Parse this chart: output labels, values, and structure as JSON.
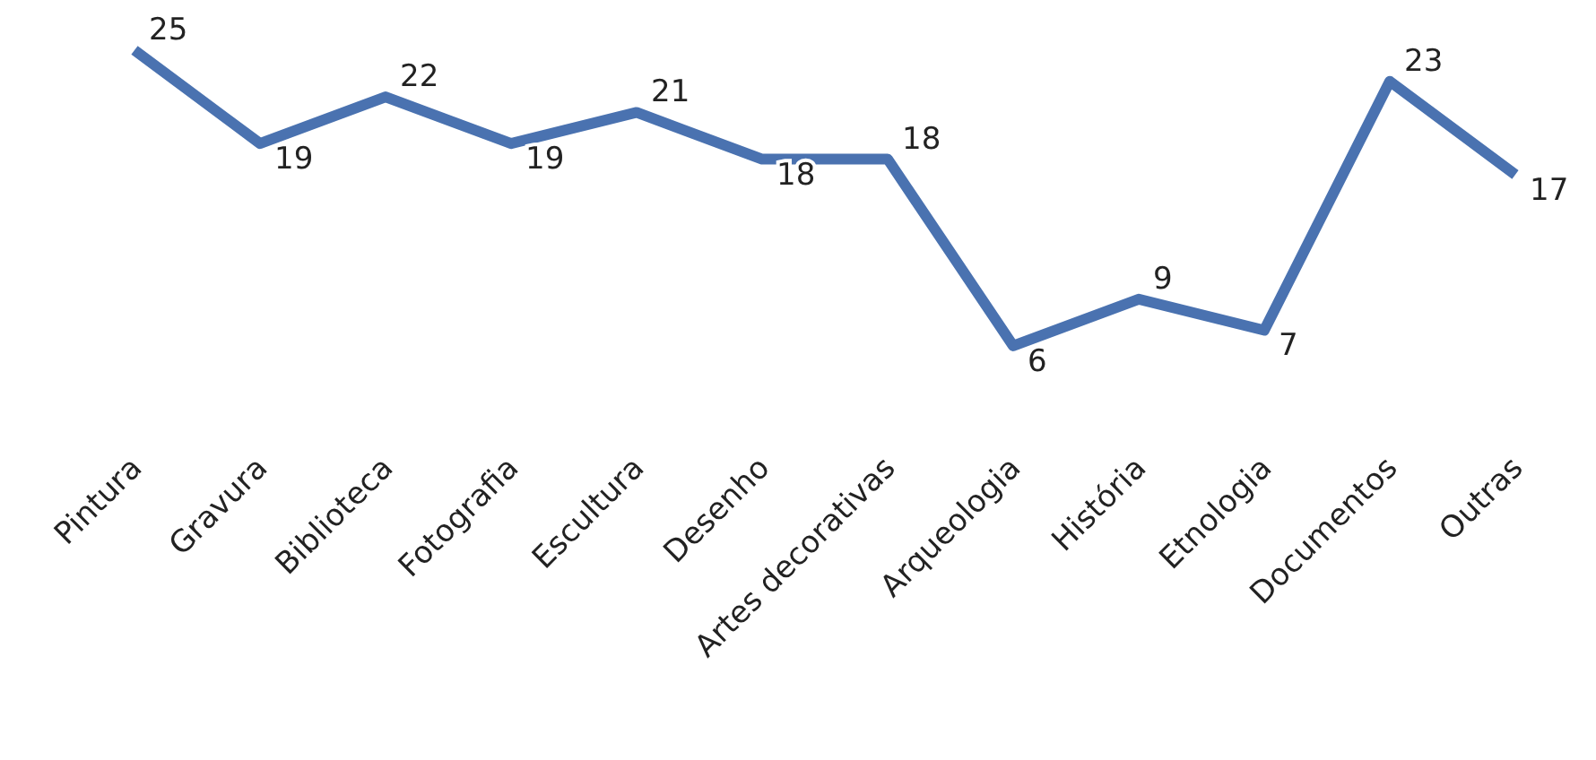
{
  "chart_data": {
    "type": "line",
    "categories": [
      "Pintura",
      "Gravura",
      "Biblioteca",
      "Fotografia",
      "Escultura",
      "Desenho",
      "Artes decorativas",
      "Arqueologia",
      "História",
      "Etnologia",
      "Documentos",
      "Outras"
    ],
    "values": [
      25,
      19,
      22,
      19,
      21,
      18,
      18,
      6,
      9,
      7,
      23,
      17
    ],
    "color": "#4a72b0",
    "data_labels": true,
    "marker": "none",
    "line_style": "solid"
  }
}
